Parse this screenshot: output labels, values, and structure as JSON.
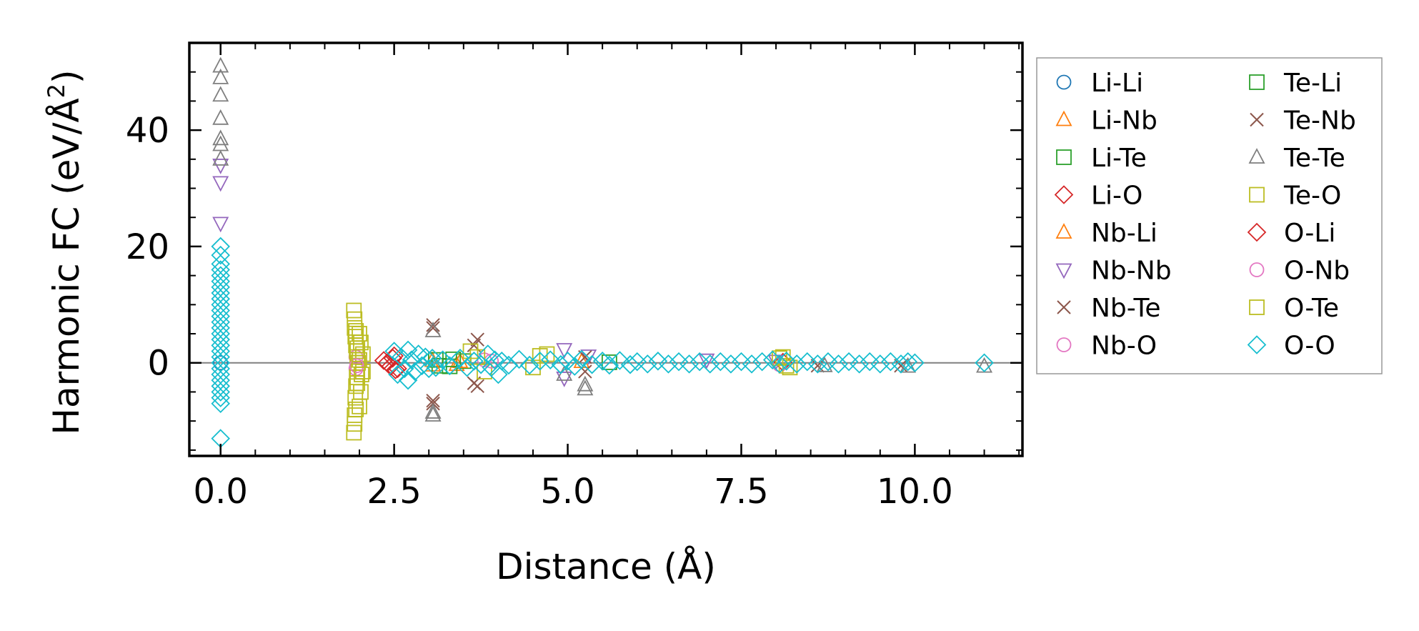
{
  "chart_data": {
    "type": "scatter",
    "title": "",
    "xlabel": "Distance (Å)",
    "ylabel_prefix": "Harmonic FC (eV/Å",
    "ylabel_sup": "2",
    "ylabel_suffix": ")",
    "xlim": [
      -0.45,
      11.55
    ],
    "ylim": [
      -16,
      55
    ],
    "xticks": [
      0.0,
      2.5,
      5.0,
      7.5,
      10.0
    ],
    "xtick_labels": [
      "0.0",
      "2.5",
      "5.0",
      "7.5",
      "10.0"
    ],
    "yticks": [
      0,
      20,
      40
    ],
    "ytick_labels": [
      "0",
      "20",
      "40"
    ],
    "grid": false,
    "zero_line": true,
    "legend_position": "outside-right",
    "series": [
      {
        "name": "Li-Li",
        "marker": "circle",
        "color": "#1f77b4",
        "points": [
          [
            0.0,
            0.0
          ]
        ]
      },
      {
        "name": "Li-Nb",
        "marker": "triangle-up",
        "color": "#ff7f0e",
        "points": [
          [
            3.05,
            0.4
          ],
          [
            3.4,
            -0.3
          ],
          [
            5.2,
            0.2
          ]
        ]
      },
      {
        "name": "Li-Te",
        "marker": "square",
        "color": "#2ca02c",
        "points": [
          [
            3.1,
            0.5
          ],
          [
            3.3,
            -0.6
          ],
          [
            3.5,
            0.3
          ],
          [
            5.6,
            0.1
          ]
        ]
      },
      {
        "name": "Li-O",
        "marker": "diamond",
        "color": "#d62728",
        "points": [
          [
            2.35,
            0.4
          ],
          [
            2.45,
            -0.6
          ],
          [
            2.5,
            1.2
          ],
          [
            2.55,
            -1.0
          ],
          [
            8.1,
            0.1
          ]
        ]
      },
      {
        "name": "Nb-Li",
        "marker": "triangle-up",
        "color": "#ff7f0e",
        "points": [
          [
            3.06,
            -0.4
          ],
          [
            3.45,
            0.2
          ]
        ]
      },
      {
        "name": "Nb-Nb",
        "marker": "triangle-down",
        "color": "#9467bd",
        "points": [
          [
            0.0,
            31.0
          ],
          [
            0.0,
            24.0
          ],
          [
            0.0,
            34.0
          ],
          [
            4.95,
            2.3
          ],
          [
            4.95,
            -2.6
          ],
          [
            5.3,
            1.2
          ],
          [
            7.0,
            0.5
          ],
          [
            8.0,
            0.3
          ]
        ]
      },
      {
        "name": "Nb-Te",
        "marker": "x",
        "color": "#8c564b",
        "points": [
          [
            3.06,
            6.5
          ],
          [
            3.06,
            -6.5
          ],
          [
            3.7,
            4.0
          ],
          [
            3.7,
            -4.0
          ],
          [
            5.25,
            1.0
          ],
          [
            8.6,
            -0.5
          ]
        ]
      },
      {
        "name": "Nb-O",
        "marker": "circle",
        "color": "#e377c2",
        "points": [
          [
            1.95,
            1.0
          ],
          [
            1.95,
            -1.0
          ],
          [
            3.8,
            0.5
          ],
          [
            8.05,
            -0.3
          ]
        ]
      },
      {
        "name": "Te-Li",
        "marker": "square",
        "color": "#2ca02c",
        "points": [
          [
            3.15,
            -0.5
          ],
          [
            3.35,
            0.6
          ]
        ]
      },
      {
        "name": "Te-Nb",
        "marker": "x",
        "color": "#8c564b",
        "points": [
          [
            3.06,
            6.0
          ],
          [
            3.06,
            -7.0
          ],
          [
            3.65,
            3.0
          ],
          [
            3.65,
            -3.5
          ],
          [
            5.25,
            -1.5
          ],
          [
            9.8,
            -0.5
          ]
        ]
      },
      {
        "name": "Te-Te",
        "marker": "triangle-up",
        "color": "#7f7f7f",
        "points": [
          [
            0.0,
            51.0
          ],
          [
            0.0,
            49.0
          ],
          [
            0.0,
            46.0
          ],
          [
            0.0,
            42.0
          ],
          [
            0.0,
            38.5
          ],
          [
            0.0,
            37.5
          ],
          [
            0.0,
            35.0
          ],
          [
            3.06,
            5.5
          ],
          [
            3.06,
            -8.5
          ],
          [
            3.06,
            -9.0
          ],
          [
            5.25,
            -4.5
          ],
          [
            5.25,
            -3.8
          ],
          [
            4.95,
            -2.0
          ],
          [
            8.7,
            -0.5
          ],
          [
            9.9,
            -0.6
          ],
          [
            11.0,
            -0.6
          ]
        ]
      },
      {
        "name": "Te-O",
        "marker": "square",
        "color": "#bcbd22",
        "points": [
          [
            1.92,
            9.0
          ],
          [
            1.92,
            -12.0
          ],
          [
            1.93,
            6.0
          ],
          [
            1.93,
            -9.0
          ],
          [
            1.94,
            4.5
          ],
          [
            1.94,
            -6.0
          ],
          [
            1.95,
            3.0
          ],
          [
            1.95,
            -4.0
          ],
          [
            1.96,
            2.0
          ],
          [
            1.96,
            -2.5
          ],
          [
            1.97,
            1.0
          ],
          [
            1.97,
            -1.0
          ],
          [
            1.98,
            0.0
          ],
          [
            2.0,
            5.0
          ],
          [
            2.0,
            -7.5
          ],
          [
            2.02,
            3.5
          ],
          [
            2.02,
            -5.0
          ],
          [
            2.05,
            1.5
          ],
          [
            2.05,
            -1.5
          ],
          [
            3.6,
            2.0
          ],
          [
            3.8,
            -1.5
          ],
          [
            4.7,
            1.5
          ],
          [
            4.5,
            -0.8
          ],
          [
            8.1,
            1.0
          ],
          [
            8.2,
            -0.8
          ]
        ]
      },
      {
        "name": "O-Li",
        "marker": "diamond",
        "color": "#d62728",
        "points": [
          [
            2.4,
            0.0
          ],
          [
            2.48,
            0.8
          ],
          [
            2.52,
            -1.2
          ]
        ]
      },
      {
        "name": "O-Nb",
        "marker": "circle",
        "color": "#e377c2",
        "points": [
          [
            1.96,
            -0.5
          ],
          [
            3.9,
            0.3
          ]
        ]
      },
      {
        "name": "O-Te",
        "marker": "square",
        "color": "#bcbd22",
        "points": [
          [
            1.93,
            7.5
          ],
          [
            1.93,
            -10.5
          ],
          [
            1.95,
            5.5
          ],
          [
            1.95,
            -8.0
          ],
          [
            1.97,
            2.5
          ],
          [
            1.97,
            -3.5
          ],
          [
            2.0,
            0.5
          ],
          [
            2.03,
            -2.0
          ],
          [
            3.7,
            1.0
          ],
          [
            4.6,
            1.2
          ],
          [
            8.05,
            0.8
          ],
          [
            8.15,
            -0.5
          ]
        ]
      },
      {
        "name": "O-O",
        "marker": "diamond",
        "color": "#17becf",
        "points": [
          [
            0.0,
            20.0
          ],
          [
            0.0,
            18.5
          ],
          [
            0.0,
            17.0
          ],
          [
            0.0,
            16.0
          ],
          [
            0.0,
            15.0
          ],
          [
            0.0,
            14.0
          ],
          [
            0.0,
            13.0
          ],
          [
            0.0,
            12.0
          ],
          [
            0.0,
            11.0
          ],
          [
            0.0,
            10.0
          ],
          [
            0.0,
            9.0
          ],
          [
            0.0,
            8.0
          ],
          [
            0.0,
            7.0
          ],
          [
            0.0,
            6.0
          ],
          [
            0.0,
            5.0
          ],
          [
            0.0,
            4.0
          ],
          [
            0.0,
            3.0
          ],
          [
            0.0,
            2.0
          ],
          [
            0.0,
            1.0
          ],
          [
            0.0,
            0.0
          ],
          [
            0.0,
            -1.0
          ],
          [
            0.0,
            -2.0
          ],
          [
            0.0,
            -3.0
          ],
          [
            0.0,
            -4.0
          ],
          [
            0.0,
            -5.0
          ],
          [
            0.0,
            -6.0
          ],
          [
            0.0,
            -7.0
          ],
          [
            0.0,
            -13.0
          ],
          [
            2.5,
            2.0
          ],
          [
            2.55,
            -2.0
          ],
          [
            2.6,
            1.0
          ],
          [
            2.65,
            -1.0
          ],
          [
            2.7,
            2.2
          ],
          [
            2.7,
            -3.0
          ],
          [
            2.75,
            0.5
          ],
          [
            2.8,
            -1.5
          ],
          [
            2.85,
            1.5
          ],
          [
            2.9,
            -0.5
          ],
          [
            2.95,
            1.0
          ],
          [
            3.0,
            -1.0
          ],
          [
            3.05,
            0.8
          ],
          [
            3.1,
            -0.8
          ],
          [
            3.2,
            0.5
          ],
          [
            3.3,
            -0.5
          ],
          [
            3.45,
            0.8
          ],
          [
            3.55,
            -0.8
          ],
          [
            3.65,
            0.3
          ],
          [
            3.75,
            -0.3
          ],
          [
            3.85,
            1.5
          ],
          [
            3.9,
            -0.8
          ],
          [
            3.95,
            0.5
          ],
          [
            4.0,
            -2.0
          ],
          [
            4.05,
            0.3
          ],
          [
            4.15,
            -0.4
          ],
          [
            4.3,
            0.6
          ],
          [
            4.45,
            -0.4
          ],
          [
            4.6,
            0.3
          ],
          [
            4.75,
            0.5
          ],
          [
            4.9,
            -0.3
          ],
          [
            5.0,
            0.3
          ],
          [
            5.1,
            -0.6
          ],
          [
            5.2,
            0.6
          ],
          [
            5.35,
            -0.3
          ],
          [
            5.5,
            0.3
          ],
          [
            5.6,
            -0.4
          ],
          [
            5.75,
            0.4
          ],
          [
            5.9,
            -0.3
          ],
          [
            6.0,
            0.2
          ],
          [
            6.15,
            -0.2
          ],
          [
            6.3,
            0.3
          ],
          [
            6.45,
            -0.2
          ],
          [
            6.6,
            0.2
          ],
          [
            6.75,
            -0.2
          ],
          [
            6.9,
            0.2
          ],
          [
            7.05,
            -0.2
          ],
          [
            7.2,
            0.2
          ],
          [
            7.35,
            -0.2
          ],
          [
            7.5,
            0.2
          ],
          [
            7.65,
            -0.2
          ],
          [
            7.8,
            0.2
          ],
          [
            7.95,
            0.5
          ],
          [
            8.05,
            -0.2
          ],
          [
            8.15,
            0.3
          ],
          [
            8.3,
            -0.2
          ],
          [
            8.45,
            0.2
          ],
          [
            8.6,
            -0.2
          ],
          [
            8.75,
            0.2
          ],
          [
            8.9,
            -0.2
          ],
          [
            9.05,
            0.2
          ],
          [
            9.2,
            -0.2
          ],
          [
            9.35,
            0.2
          ],
          [
            9.5,
            -0.2
          ],
          [
            9.65,
            0.2
          ],
          [
            9.8,
            -0.2
          ],
          [
            9.9,
            0.2
          ],
          [
            10.0,
            0.0
          ],
          [
            11.0,
            0.0
          ]
        ]
      }
    ]
  }
}
